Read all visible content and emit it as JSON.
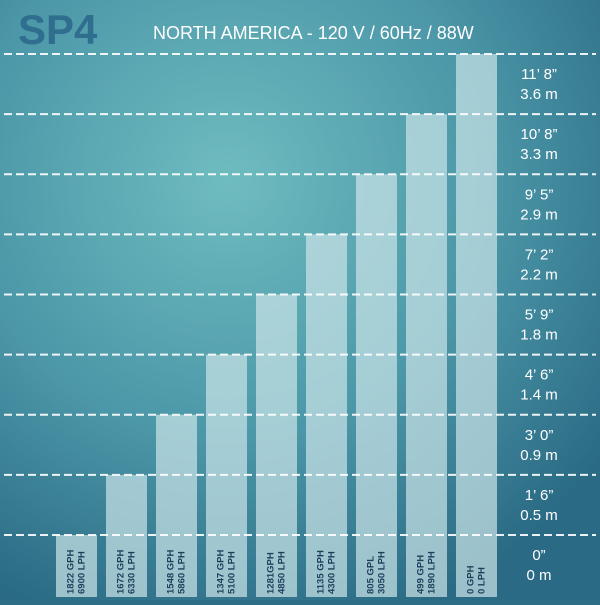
{
  "chart_data": {
    "type": "bar",
    "title": "SP4",
    "subtitle": "NORTH AMERICA - 120 V / 60Hz / 88W",
    "categories": [
      [
        "1822 GPH",
        "6900 LPH"
      ],
      [
        "1672 GPH",
        "6330 LPH"
      ],
      [
        "1548 GPH",
        "5860 LPH"
      ],
      [
        "1347 GPH",
        "5100 LPH"
      ],
      [
        "1281GPH",
        "4850 LPH"
      ],
      [
        "1135 GPH",
        "4300 LPH"
      ],
      [
        "805 GPL",
        "3050 LPH"
      ],
      [
        "499 GPH",
        "1890 LPH"
      ],
      [
        "0 GPH",
        "0 LPH"
      ]
    ],
    "values_m": [
      0,
      0.5,
      0.9,
      1.4,
      1.8,
      2.2,
      2.9,
      3.3,
      3.6
    ],
    "ylim_m": [
      0,
      3.6
    ],
    "y_ticks_m": [
      0,
      0.5,
      0.9,
      1.4,
      1.8,
      2.2,
      2.9,
      3.3,
      3.6
    ],
    "y_tick_labels": [
      [
        "0”",
        "0 m"
      ],
      [
        "1’ 6”",
        "0.5 m"
      ],
      [
        "3’ 0”",
        "0.9 m"
      ],
      [
        "4’ 6”",
        "1.4 m"
      ],
      [
        "5’ 9”",
        "1.8 m"
      ],
      [
        "7’ 2”",
        "2.2 m"
      ],
      [
        "9’ 5”",
        "2.9 m"
      ],
      [
        "10’ 8”",
        "3.3 m"
      ],
      [
        "11’ 8”",
        "3.6 m"
      ]
    ],
    "grid": true,
    "colors": {
      "background_center": "#6fbcc0",
      "background_edge": "#2a6a84",
      "bar_fill": "#c8e2e6",
      "grid_line": "#ffffff",
      "title": "#2f6e8e",
      "text": "#ffffff",
      "category_text": "#1d3f5a"
    }
  }
}
